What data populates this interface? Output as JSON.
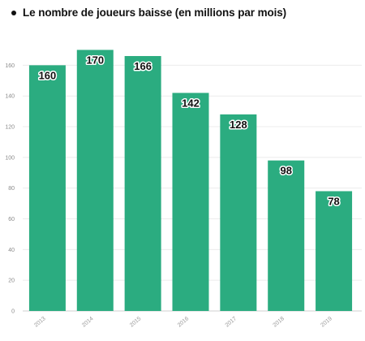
{
  "chart_data": {
    "type": "bar",
    "title": "Le nombre de joueurs baisse (en millions par mois)",
    "categories": [
      "2013",
      "2014",
      "2015",
      "2016",
      "2017",
      "2018",
      "2019"
    ],
    "values": [
      160,
      170,
      166,
      142,
      128,
      98,
      78
    ],
    "data_labels": [
      "160",
      "170",
      "166",
      "142",
      "128",
      "98",
      "78"
    ],
    "y_ticks": [
      "0",
      "20",
      "40",
      "60",
      "80",
      "100",
      "120",
      "140",
      "160"
    ],
    "ylim": [
      0,
      175
    ],
    "xlabel": "",
    "ylabel": "",
    "grid": true,
    "bar_color": "#2bac80"
  }
}
